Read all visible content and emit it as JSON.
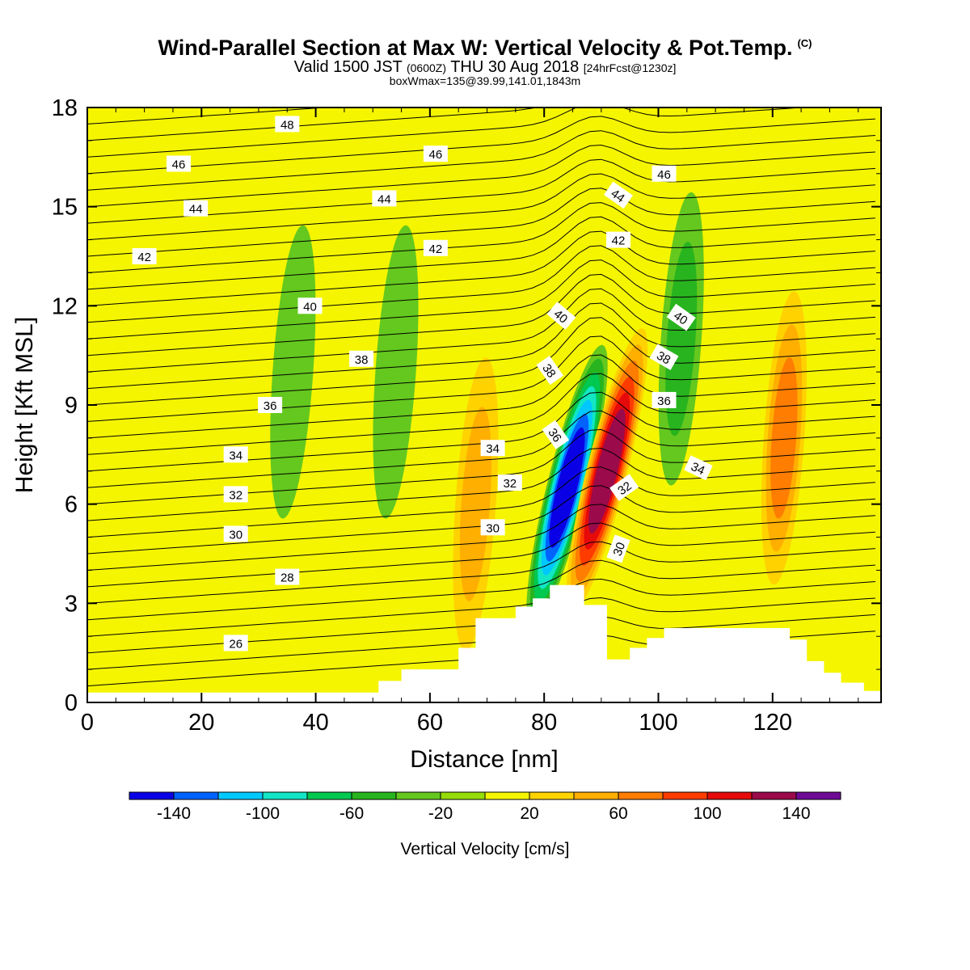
{
  "titles": {
    "main": "Wind-Parallel Section at Max W: Vertical Velocity & Pot.Temp.",
    "copyright": "(C)",
    "valid_prefix": "Valid 1500 JST",
    "valid_utc": "(0600Z)",
    "valid_date": "THU 30 Aug 2018",
    "forecast": "[24hrFcst@1230z]",
    "box": "boxWmax=135@39.99,141.01,1843m"
  },
  "chart_data": {
    "type": "heatmap",
    "xlabel": "Distance [nm]",
    "ylabel": "Height [Kft MSL]",
    "xlim": [
      0,
      139
    ],
    "ylim": [
      0,
      18
    ],
    "xticks": [
      0,
      20,
      40,
      60,
      80,
      100,
      120
    ],
    "yticks": [
      0,
      3,
      6,
      9,
      12,
      15,
      18
    ],
    "colorbar": {
      "label": "Vertical Velocity [cm/s]",
      "tick_labels": [
        "-140",
        "-100",
        "-60",
        "-20",
        "20",
        "60",
        "100",
        "140"
      ],
      "tick_values": [
        -140,
        -100,
        -60,
        -20,
        20,
        60,
        100,
        140
      ],
      "levels": [
        -160,
        -140,
        -120,
        -100,
        -80,
        -60,
        -40,
        -20,
        0,
        20,
        40,
        60,
        80,
        100,
        120,
        140,
        160
      ],
      "colors": [
        "#0a00e6",
        "#0063ff",
        "#00c8ff",
        "#12e6c4",
        "#00c850",
        "#28b41e",
        "#64c81e",
        "#96dc0a",
        "#f5f500",
        "#ffd200",
        "#ffaf00",
        "#ff7d00",
        "#ff3c00",
        "#e60a0a",
        "#9b0a4b",
        "#6e0a96"
      ]
    },
    "vertical_velocity_features": [
      {
        "x": 84,
        "z": 6.5,
        "w": -140
      },
      {
        "x": 91,
        "z": 7.0,
        "w": 135
      },
      {
        "x": 122,
        "z": 8.0,
        "w": 60
      },
      {
        "x": 68,
        "z": 6.0,
        "w": 40
      },
      {
        "x": 36,
        "z": 10.0,
        "w": -20
      },
      {
        "x": 54,
        "z": 10.0,
        "w": -20
      },
      {
        "x": 104,
        "z": 11.0,
        "w": -40
      }
    ],
    "terrain_profile": {
      "x": [
        0,
        48,
        51,
        55,
        65,
        68,
        75,
        78,
        81,
        87,
        91,
        95,
        98,
        101,
        104,
        120,
        123,
        126,
        129,
        132,
        136,
        139
      ],
      "z": [
        0.3,
        0.3,
        0.65,
        1.0,
        1.65,
        2.55,
        2.9,
        3.15,
        3.55,
        2.95,
        1.3,
        1.65,
        1.95,
        2.25,
        2.25,
        2.25,
        1.9,
        1.25,
        0.9,
        0.6,
        0.35,
        0.35
      ]
    },
    "isentrope_labels": [
      {
        "text": "48",
        "x": 35,
        "z": 17.5,
        "rot": 0
      },
      {
        "text": "46",
        "x": 16,
        "z": 16.3,
        "rot": 0
      },
      {
        "text": "46",
        "x": 61,
        "z": 16.6,
        "rot": 0
      },
      {
        "text": "46",
        "x": 101,
        "z": 16.0,
        "rot": 0
      },
      {
        "text": "44",
        "x": 19,
        "z": 14.95,
        "rot": 0
      },
      {
        "text": "44",
        "x": 52,
        "z": 15.25,
        "rot": 0
      },
      {
        "text": "44",
        "x": 93,
        "z": 15.35,
        "rot": 35
      },
      {
        "text": "42",
        "x": 10,
        "z": 13.5,
        "rot": 0
      },
      {
        "text": "42",
        "x": 61,
        "z": 13.75,
        "rot": 0
      },
      {
        "text": "42",
        "x": 93,
        "z": 14.0,
        "rot": 0
      },
      {
        "text": "40",
        "x": 39,
        "z": 12.0,
        "rot": 0
      },
      {
        "text": "40",
        "x": 83,
        "z": 11.7,
        "rot": 40
      },
      {
        "text": "40",
        "x": 104,
        "z": 11.65,
        "rot": 35
      },
      {
        "text": "38",
        "x": 48,
        "z": 10.4,
        "rot": 0
      },
      {
        "text": "38",
        "x": 81,
        "z": 10.05,
        "rot": 55
      },
      {
        "text": "38",
        "x": 101,
        "z": 10.45,
        "rot": 30
      },
      {
        "text": "36",
        "x": 32,
        "z": 9.0,
        "rot": 0
      },
      {
        "text": "36",
        "x": 82,
        "z": 8.1,
        "rot": 55
      },
      {
        "text": "36",
        "x": 101,
        "z": 9.15,
        "rot": 0
      },
      {
        "text": "34",
        "x": 26,
        "z": 7.5,
        "rot": 0
      },
      {
        "text": "34",
        "x": 71,
        "z": 7.7,
        "rot": 0
      },
      {
        "text": "34",
        "x": 107,
        "z": 7.1,
        "rot": 25
      },
      {
        "text": "32",
        "x": 26,
        "z": 6.3,
        "rot": 0
      },
      {
        "text": "32",
        "x": 74,
        "z": 6.65,
        "rot": 0
      },
      {
        "text": "32",
        "x": 94,
        "z": 6.5,
        "rot": -35
      },
      {
        "text": "30",
        "x": 26,
        "z": 5.1,
        "rot": 0
      },
      {
        "text": "30",
        "x": 71,
        "z": 5.3,
        "rot": 0
      },
      {
        "text": "30",
        "x": 93,
        "z": 4.65,
        "rot": -70
      },
      {
        "text": "28",
        "x": 35,
        "z": 3.8,
        "rot": 0
      },
      {
        "text": "26",
        "x": 26,
        "z": 1.8,
        "rot": 0
      }
    ]
  }
}
